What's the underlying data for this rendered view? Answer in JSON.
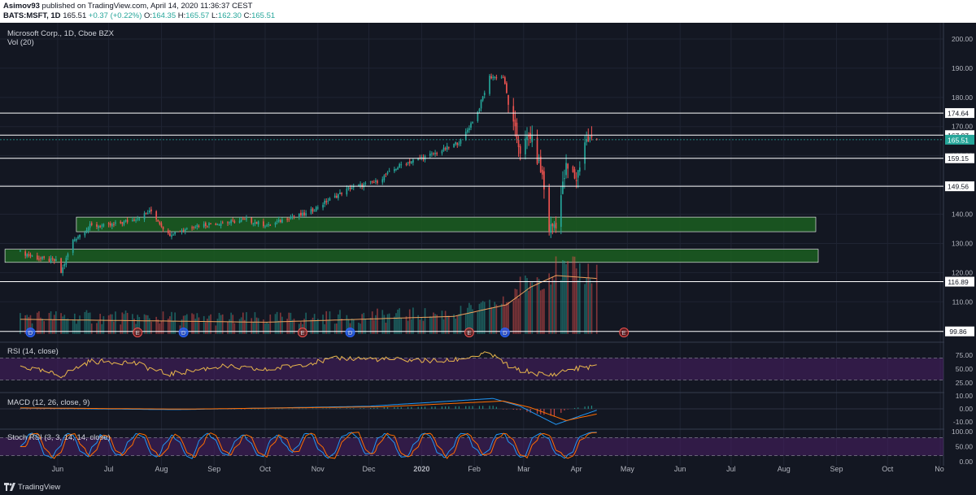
{
  "header": {
    "author": "Asimov93",
    "published_text": "published on TradingView.com, April 14, 2020 11:36:37 CEST",
    "symbol_line": "BATS:MSFT, 1D",
    "last": "165.51",
    "change": "+0.37 (+0.22%)",
    "o_label": "O:",
    "o_value": "164.35",
    "h_label": "H:",
    "h_value": "165.57",
    "l_label": "L:",
    "l_value": "162.30",
    "c_label": "C:",
    "c_value": "165.51"
  },
  "legend": {
    "title": "Microsoft Corp., 1D, Cboe BZX",
    "volume": "Vol (20)",
    "rsi": "RSI (14, close)",
    "macd": "MACD (12, 26, close, 9)",
    "stoch": "Stoch RSI (3, 3, 14, 14, close)"
  },
  "footer": {
    "brand": "TradingView"
  },
  "colors": {
    "background": "#131722",
    "up": "#26a69a",
    "down": "#ef5350",
    "zone": "#1b5e20",
    "level_line": "#ffffff",
    "indicator_band": "#4a1f66",
    "rsi_line": "#e8b64c",
    "macd_line": "#2196f3",
    "signal_line": "#ff6d00",
    "last_price": "#26a69a"
  },
  "chart_data": {
    "type": "candlestick",
    "symbol": "MSFT",
    "interval": "1D",
    "x_labels": [
      "Jun",
      "Jul",
      "Aug",
      "Sep",
      "Oct",
      "Nov",
      "Dec",
      "2020",
      "Feb",
      "Mar",
      "Apr",
      "May",
      "Jun",
      "Jul",
      "Aug",
      "Sep",
      "Oct",
      "No"
    ],
    "y_ticks": [
      110,
      120,
      130,
      140,
      150,
      160,
      170,
      180,
      190,
      200
    ],
    "ylim": [
      97,
      205
    ],
    "last_price": 165.51,
    "horizontal_levels": [
      99.86,
      116.89,
      149.56,
      159.15,
      167.07,
      174.64
    ],
    "support_zones": [
      {
        "from": 134,
        "to": 139,
        "start": "Jun 2019",
        "end": "Aug 2020"
      },
      {
        "from": 123.5,
        "to": 128,
        "start": "May 2019",
        "end": "Aug 2020"
      }
    ],
    "close_path": [
      [
        "2019-05-10",
        127
      ],
      [
        "2019-05-20",
        125
      ],
      [
        "2019-05-31",
        124
      ],
      [
        "2019-06-03",
        120
      ],
      [
        "2019-06-10",
        131
      ],
      [
        "2019-06-20",
        136
      ],
      [
        "2019-07-01",
        136
      ],
      [
        "2019-07-15",
        138
      ],
      [
        "2019-07-26",
        141
      ],
      [
        "2019-08-05",
        133
      ],
      [
        "2019-08-20",
        136
      ],
      [
        "2019-09-05",
        137
      ],
      [
        "2019-09-20",
        138
      ],
      [
        "2019-10-03",
        136
      ],
      [
        "2019-10-15",
        139
      ],
      [
        "2019-10-25",
        140
      ],
      [
        "2019-11-05",
        144
      ],
      [
        "2019-11-20",
        149
      ],
      [
        "2019-12-05",
        151
      ],
      [
        "2019-12-20",
        157
      ],
      [
        "2020-01-10",
        161
      ],
      [
        "2020-01-24",
        165
      ],
      [
        "2020-02-03",
        175
      ],
      [
        "2020-02-10",
        187
      ],
      [
        "2020-02-18",
        187
      ],
      [
        "2020-02-24",
        170
      ],
      [
        "2020-02-28",
        162
      ],
      [
        "2020-03-05",
        167
      ],
      [
        "2020-03-12",
        153
      ],
      [
        "2020-03-16",
        135
      ],
      [
        "2020-03-20",
        137
      ],
      [
        "2020-03-26",
        156
      ],
      [
        "2020-04-01",
        152
      ],
      [
        "2020-04-06",
        165
      ],
      [
        "2020-04-09",
        165.5
      ],
      [
        "2020-04-13",
        165.51
      ]
    ],
    "volume_ma_path": [
      [
        "2019-05-10",
        104
      ],
      [
        "2019-10-01",
        103
      ],
      [
        "2020-01-20",
        105
      ],
      [
        "2020-02-20",
        109
      ],
      [
        "2020-03-05",
        115
      ],
      [
        "2020-03-20",
        119
      ],
      [
        "2020-04-13",
        118
      ]
    ],
    "event_markers": [
      {
        "date": "2019-05-16",
        "label": "D"
      },
      {
        "date": "2019-07-18",
        "label": "E"
      },
      {
        "date": "2019-08-14",
        "label": "D"
      },
      {
        "date": "2019-10-23",
        "label": "E"
      },
      {
        "date": "2019-11-20",
        "label": "D"
      },
      {
        "date": "2020-01-29",
        "label": "E"
      },
      {
        "date": "2020-02-19",
        "label": "D"
      },
      {
        "date": "2020-04-29",
        "label": "E"
      }
    ],
    "rsi": {
      "ticks": [
        25,
        50,
        75
      ],
      "levels": [
        30,
        70
      ],
      "path": [
        [
          "2019-05-10",
          55
        ],
        [
          "2019-06-03",
          38
        ],
        [
          "2019-06-20",
          64
        ],
        [
          "2019-07-15",
          62
        ],
        [
          "2019-08-05",
          40
        ],
        [
          "2019-09-05",
          55
        ],
        [
          "2019-10-01",
          48
        ],
        [
          "2019-11-15",
          70
        ],
        [
          "2020-01-15",
          64
        ],
        [
          "2020-02-10",
          78
        ],
        [
          "2020-02-24",
          50
        ],
        [
          "2020-03-16",
          38
        ],
        [
          "2020-03-26",
          48
        ],
        [
          "2020-04-13",
          56
        ]
      ]
    },
    "macd": {
      "ticks": [
        -10,
        0,
        10
      ],
      "macd_path": [
        [
          "2019-05-10",
          0.5
        ],
        [
          "2019-08-10",
          -0.6
        ],
        [
          "2019-12-01",
          2
        ],
        [
          "2020-02-12",
          8
        ],
        [
          "2020-02-28",
          2
        ],
        [
          "2020-03-20",
          -12
        ],
        [
          "2020-04-13",
          -1
        ]
      ],
      "signal_path": [
        [
          "2019-05-10",
          0.7
        ],
        [
          "2019-08-15",
          -0.2
        ],
        [
          "2019-12-10",
          1.6
        ],
        [
          "2020-02-18",
          6
        ],
        [
          "2020-03-05",
          1
        ],
        [
          "2020-03-26",
          -9
        ],
        [
          "2020-04-13",
          -4
        ]
      ]
    },
    "stoch_rsi": {
      "ticks": [
        0,
        50,
        100
      ],
      "levels": [
        20,
        80
      ],
      "samples": [
        50,
        90,
        95,
        60,
        20,
        10,
        40,
        85,
        95,
        70,
        30,
        15,
        55,
        90,
        80,
        40,
        20,
        35,
        75,
        95,
        85,
        45,
        15,
        25,
        70,
        92,
        65,
        30,
        10,
        45,
        88,
        96,
        70,
        35,
        20,
        50,
        85,
        90,
        55,
        25,
        15,
        60,
        90,
        80,
        40,
        30,
        65,
        95,
        90,
        50,
        20,
        10,
        40,
        80,
        95,
        98,
        60,
        25,
        30,
        75,
        95,
        85,
        40,
        15,
        20,
        55,
        90,
        95,
        70,
        30,
        10,
        35,
        80,
        95,
        85,
        45,
        20,
        30,
        70,
        94,
        92,
        60,
        25,
        12,
        50,
        88,
        95,
        80,
        40,
        20,
        10,
        30,
        70,
        90,
        96,
        98
      ]
    }
  }
}
